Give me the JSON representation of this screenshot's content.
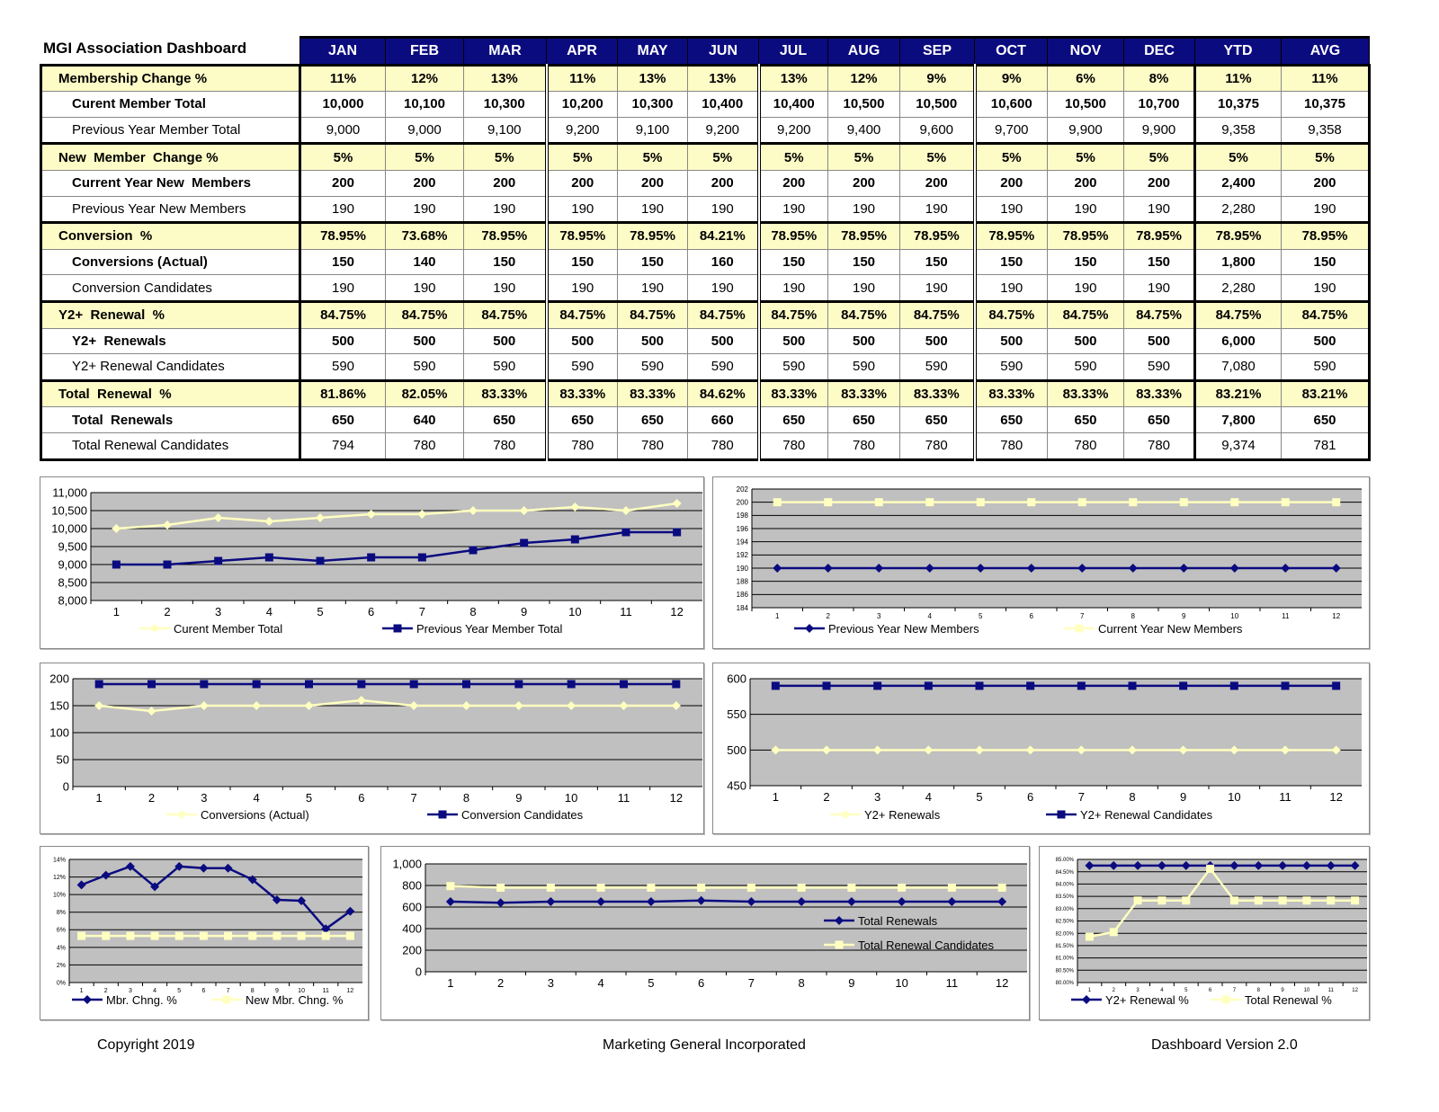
{
  "title": "MGI Association Dashboard",
  "table": {
    "columns": [
      "JAN",
      "FEB",
      "MAR",
      "APR",
      "MAY",
      "JUN",
      "JUL",
      "AUG",
      "SEP",
      "OCT",
      "NOV",
      "DEC",
      "YTD",
      "AVG"
    ],
    "rows": [
      {
        "label": "Membership Change %",
        "kind": "sec",
        "values": [
          "11%",
          "12%",
          "13%",
          "11%",
          "13%",
          "13%",
          "13%",
          "12%",
          "9%",
          "9%",
          "6%",
          "8%",
          "11%",
          "11%"
        ]
      },
      {
        "label": "Curent Member Total",
        "kind": "r1",
        "values": [
          "10,000",
          "10,100",
          "10,300",
          "10,200",
          "10,300",
          "10,400",
          "10,400",
          "10,500",
          "10,500",
          "10,600",
          "10,500",
          "10,700",
          "10,375",
          "10,375"
        ]
      },
      {
        "label": "Previous Year Member Total",
        "kind": "r2",
        "values": [
          "9,000",
          "9,000",
          "9,100",
          "9,200",
          "9,100",
          "9,200",
          "9,200",
          "9,400",
          "9,600",
          "9,700",
          "9,900",
          "9,900",
          "9,358",
          "9,358"
        ]
      },
      {
        "label": "New  Member  Change %",
        "kind": "sec",
        "values": [
          "5%",
          "5%",
          "5%",
          "5%",
          "5%",
          "5%",
          "5%",
          "5%",
          "5%",
          "5%",
          "5%",
          "5%",
          "5%",
          "5%"
        ]
      },
      {
        "label": "Current Year New  Members",
        "kind": "r1",
        "values": [
          "200",
          "200",
          "200",
          "200",
          "200",
          "200",
          "200",
          "200",
          "200",
          "200",
          "200",
          "200",
          "2,400",
          "200"
        ]
      },
      {
        "label": "Previous Year New Members",
        "kind": "r2",
        "values": [
          "190",
          "190",
          "190",
          "190",
          "190",
          "190",
          "190",
          "190",
          "190",
          "190",
          "190",
          "190",
          "2,280",
          "190"
        ]
      },
      {
        "label": "Conversion  %",
        "kind": "sec",
        "values": [
          "78.95%",
          "73.68%",
          "78.95%",
          "78.95%",
          "78.95%",
          "84.21%",
          "78.95%",
          "78.95%",
          "78.95%",
          "78.95%",
          "78.95%",
          "78.95%",
          "78.95%",
          "78.95%"
        ]
      },
      {
        "label": "Conversions (Actual)",
        "kind": "r1",
        "values": [
          "150",
          "140",
          "150",
          "150",
          "150",
          "160",
          "150",
          "150",
          "150",
          "150",
          "150",
          "150",
          "1,800",
          "150"
        ]
      },
      {
        "label": "Conversion Candidates",
        "kind": "r2",
        "values": [
          "190",
          "190",
          "190",
          "190",
          "190",
          "190",
          "190",
          "190",
          "190",
          "190",
          "190",
          "190",
          "2,280",
          "190"
        ]
      },
      {
        "label": "Y2+  Renewal  %",
        "kind": "sec",
        "values": [
          "84.75%",
          "84.75%",
          "84.75%",
          "84.75%",
          "84.75%",
          "84.75%",
          "84.75%",
          "84.75%",
          "84.75%",
          "84.75%",
          "84.75%",
          "84.75%",
          "84.75%",
          "84.75%"
        ]
      },
      {
        "label": "Y2+  Renewals",
        "kind": "r1",
        "values": [
          "500",
          "500",
          "500",
          "500",
          "500",
          "500",
          "500",
          "500",
          "500",
          "500",
          "500",
          "500",
          "6,000",
          "500"
        ]
      },
      {
        "label": "Y2+ Renewal Candidates",
        "kind": "r2",
        "values": [
          "590",
          "590",
          "590",
          "590",
          "590",
          "590",
          "590",
          "590",
          "590",
          "590",
          "590",
          "590",
          "7,080",
          "590"
        ]
      },
      {
        "label": "Total  Renewal  %",
        "kind": "sec",
        "values": [
          "81.86%",
          "82.05%",
          "83.33%",
          "83.33%",
          "83.33%",
          "84.62%",
          "83.33%",
          "83.33%",
          "83.33%",
          "83.33%",
          "83.33%",
          "83.33%",
          "83.21%",
          "83.21%"
        ]
      },
      {
        "label": "Total  Renewals",
        "kind": "r1",
        "values": [
          "650",
          "640",
          "650",
          "650",
          "650",
          "660",
          "650",
          "650",
          "650",
          "650",
          "650",
          "650",
          "7,800",
          "650"
        ]
      },
      {
        "label": "Total Renewal Candidates",
        "kind": "r2",
        "values": [
          "794",
          "780",
          "780",
          "780",
          "780",
          "780",
          "780",
          "780",
          "780",
          "780",
          "780",
          "780",
          "9,374",
          "781"
        ]
      }
    ]
  },
  "colors": {
    "header": "#0b0b80",
    "section": "#fdfbc6",
    "navy": "#0b0b80",
    "yellow": "#ffffc0",
    "plot_bg": "#c0c0c0"
  },
  "chart_data": [
    {
      "type": "line",
      "x": [
        "1",
        "2",
        "3",
        "4",
        "5",
        "6",
        "7",
        "8",
        "9",
        "10",
        "11",
        "12"
      ],
      "ylim": [
        8000,
        11000
      ],
      "yticks": [
        "8,000",
        "8,500",
        "9,000",
        "9,500",
        "10,000",
        "10,500",
        "11,000"
      ],
      "grid": true,
      "legend": "bottom",
      "series": [
        {
          "name": "Curent Member Total",
          "color": "#ffffc0",
          "marker": "diamond",
          "values": [
            10000,
            10100,
            10300,
            10200,
            10300,
            10400,
            10400,
            10500,
            10500,
            10600,
            10500,
            10700
          ]
        },
        {
          "name": "Previous Year Member Total",
          "color": "#0b0b80",
          "marker": "square",
          "values": [
            9000,
            9000,
            9100,
            9200,
            9100,
            9200,
            9200,
            9400,
            9600,
            9700,
            9900,
            9900
          ]
        }
      ]
    },
    {
      "type": "line",
      "x": [
        "1",
        "2",
        "3",
        "4",
        "5",
        "6",
        "7",
        "8",
        "9",
        "10",
        "11",
        "12"
      ],
      "ylim": [
        184,
        202
      ],
      "yticks": [
        "184",
        "186",
        "188",
        "190",
        "192",
        "194",
        "196",
        "198",
        "200",
        "202"
      ],
      "grid": true,
      "legend": "bottom",
      "series": [
        {
          "name": "Previous Year New Members",
          "color": "#0b0b80",
          "marker": "diamond",
          "values": [
            190,
            190,
            190,
            190,
            190,
            190,
            190,
            190,
            190,
            190,
            190,
            190
          ]
        },
        {
          "name": "Current Year New Members",
          "color": "#ffffc0",
          "marker": "square",
          "values": [
            200,
            200,
            200,
            200,
            200,
            200,
            200,
            200,
            200,
            200,
            200,
            200
          ]
        }
      ]
    },
    {
      "type": "line",
      "x": [
        "1",
        "2",
        "3",
        "4",
        "5",
        "6",
        "7",
        "8",
        "9",
        "10",
        "11",
        "12"
      ],
      "ylim": [
        0,
        200
      ],
      "yticks": [
        "0",
        "50",
        "100",
        "150",
        "200"
      ],
      "grid": true,
      "legend": "bottom",
      "series": [
        {
          "name": "Conversions (Actual)",
          "color": "#ffffc0",
          "marker": "diamond",
          "values": [
            150,
            140,
            150,
            150,
            150,
            160,
            150,
            150,
            150,
            150,
            150,
            150
          ]
        },
        {
          "name": "Conversion Candidates",
          "color": "#0b0b80",
          "marker": "square",
          "values": [
            190,
            190,
            190,
            190,
            190,
            190,
            190,
            190,
            190,
            190,
            190,
            190
          ]
        }
      ]
    },
    {
      "type": "line",
      "x": [
        "1",
        "2",
        "3",
        "4",
        "5",
        "6",
        "7",
        "8",
        "9",
        "10",
        "11",
        "12"
      ],
      "ylim": [
        450,
        600
      ],
      "yticks": [
        "450",
        "500",
        "550",
        "600"
      ],
      "grid": true,
      "legend": "bottom",
      "series": [
        {
          "name": "Y2+ Renewals",
          "color": "#ffffc0",
          "marker": "diamond",
          "values": [
            500,
            500,
            500,
            500,
            500,
            500,
            500,
            500,
            500,
            500,
            500,
            500
          ]
        },
        {
          "name": "Y2+ Renewal Candidates",
          "color": "#0b0b80",
          "marker": "square",
          "values": [
            590,
            590,
            590,
            590,
            590,
            590,
            590,
            590,
            590,
            590,
            590,
            590
          ]
        }
      ]
    },
    {
      "type": "line",
      "x": [
        "1",
        "2",
        "3",
        "4",
        "5",
        "6",
        "7",
        "8",
        "9",
        "10",
        "11",
        "12"
      ],
      "ylim": [
        0,
        14
      ],
      "yticks": [
        "0%",
        "2%",
        "4%",
        "6%",
        "8%",
        "10%",
        "12%",
        "14%"
      ],
      "grid": true,
      "legend": "bottom",
      "series": [
        {
          "name": "Mbr. Chng. %",
          "color": "#0b0b80",
          "marker": "diamond",
          "values": [
            11.1,
            12.2,
            13.2,
            10.9,
            13.2,
            13.0,
            13.0,
            11.7,
            9.4,
            9.3,
            6.1,
            8.1
          ]
        },
        {
          "name": "New Mbr. Chng. %",
          "color": "#ffffc0",
          "marker": "square",
          "values": [
            5.3,
            5.3,
            5.3,
            5.3,
            5.3,
            5.3,
            5.3,
            5.3,
            5.3,
            5.3,
            5.3,
            5.3
          ]
        }
      ]
    },
    {
      "type": "line",
      "x": [
        "1",
        "2",
        "3",
        "4",
        "5",
        "6",
        "7",
        "8",
        "9",
        "10",
        "11",
        "12"
      ],
      "ylim": [
        0,
        1000
      ],
      "yticks": [
        "0",
        "200",
        "400",
        "600",
        "800",
        "1,000"
      ],
      "grid": true,
      "legend": "right",
      "series": [
        {
          "name": "Total Renewals",
          "color": "#0b0b80",
          "marker": "diamond",
          "values": [
            650,
            640,
            650,
            650,
            650,
            660,
            650,
            650,
            650,
            650,
            650,
            650
          ]
        },
        {
          "name": "Total Renewal Candidates",
          "color": "#ffffc0",
          "marker": "square",
          "values": [
            794,
            780,
            780,
            780,
            780,
            780,
            780,
            780,
            780,
            780,
            780,
            780
          ]
        }
      ]
    },
    {
      "type": "line",
      "x": [
        "1",
        "2",
        "3",
        "4",
        "5",
        "6",
        "7",
        "8",
        "9",
        "10",
        "11",
        "12"
      ],
      "ylim": [
        80,
        85
      ],
      "yticks": [
        "80.00%",
        "80.50%",
        "81.00%",
        "81.50%",
        "82.00%",
        "82.50%",
        "83.00%",
        "83.50%",
        "84.00%",
        "84.50%",
        "85.00%"
      ],
      "grid": true,
      "legend": "bottom",
      "series": [
        {
          "name": "Y2+ Renewal %",
          "color": "#0b0b80",
          "marker": "diamond",
          "values": [
            84.75,
            84.75,
            84.75,
            84.75,
            84.75,
            84.75,
            84.75,
            84.75,
            84.75,
            84.75,
            84.75,
            84.75
          ]
        },
        {
          "name": "Total Renewal %",
          "color": "#ffffc0",
          "marker": "square",
          "values": [
            81.86,
            82.05,
            83.33,
            83.33,
            83.33,
            84.62,
            83.33,
            83.33,
            83.33,
            83.33,
            83.33,
            83.33
          ]
        }
      ]
    }
  ],
  "footer": {
    "left": "Copyright 2019",
    "center": "Marketing General Incorporated",
    "right": "Dashboard Version 2.0"
  }
}
